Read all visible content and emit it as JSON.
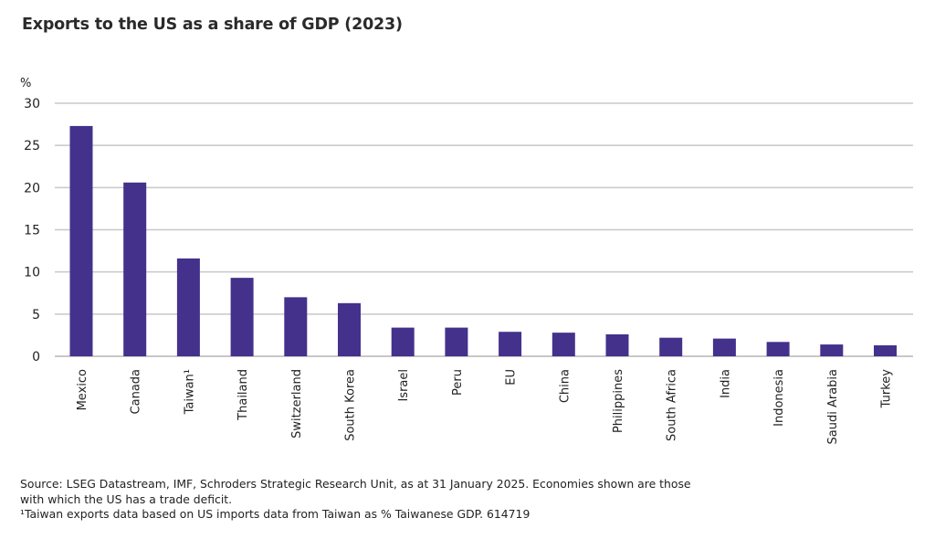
{
  "chart_data": {
    "type": "bar",
    "title": "Exports to the US as a share of GDP (2023)",
    "ylabel": "%",
    "xlabel": "",
    "ylim": [
      0,
      30
    ],
    "yticks": [
      0,
      5,
      10,
      15,
      20,
      25,
      30
    ],
    "grid": true,
    "bar_color": "#44318c",
    "grid_color": "#c8c8c8",
    "categories": [
      "Mexico",
      "Canada",
      "Taiwan¹",
      "Thailand",
      "Switzerland",
      "South Korea",
      "Israel",
      "Peru",
      "EU",
      "China",
      "Philippines",
      "South Africa",
      "India",
      "Indonesia",
      "Saudi Arabia",
      "Turkey"
    ],
    "values": [
      27.3,
      20.6,
      11.6,
      9.3,
      7.0,
      6.3,
      3.4,
      3.4,
      2.9,
      2.8,
      2.6,
      2.2,
      2.1,
      1.7,
      1.4,
      1.3
    ]
  },
  "footer": {
    "line1": "Source: LSEG Datastream, IMF, Schroders Strategic Research Unit, as at 31 January 2025. Economies shown are those",
    "line2": "with which the US has a trade deficit.",
    "line3": "¹Taiwan exports data based on US imports data from Taiwan as % Taiwanese GDP. 614719"
  }
}
